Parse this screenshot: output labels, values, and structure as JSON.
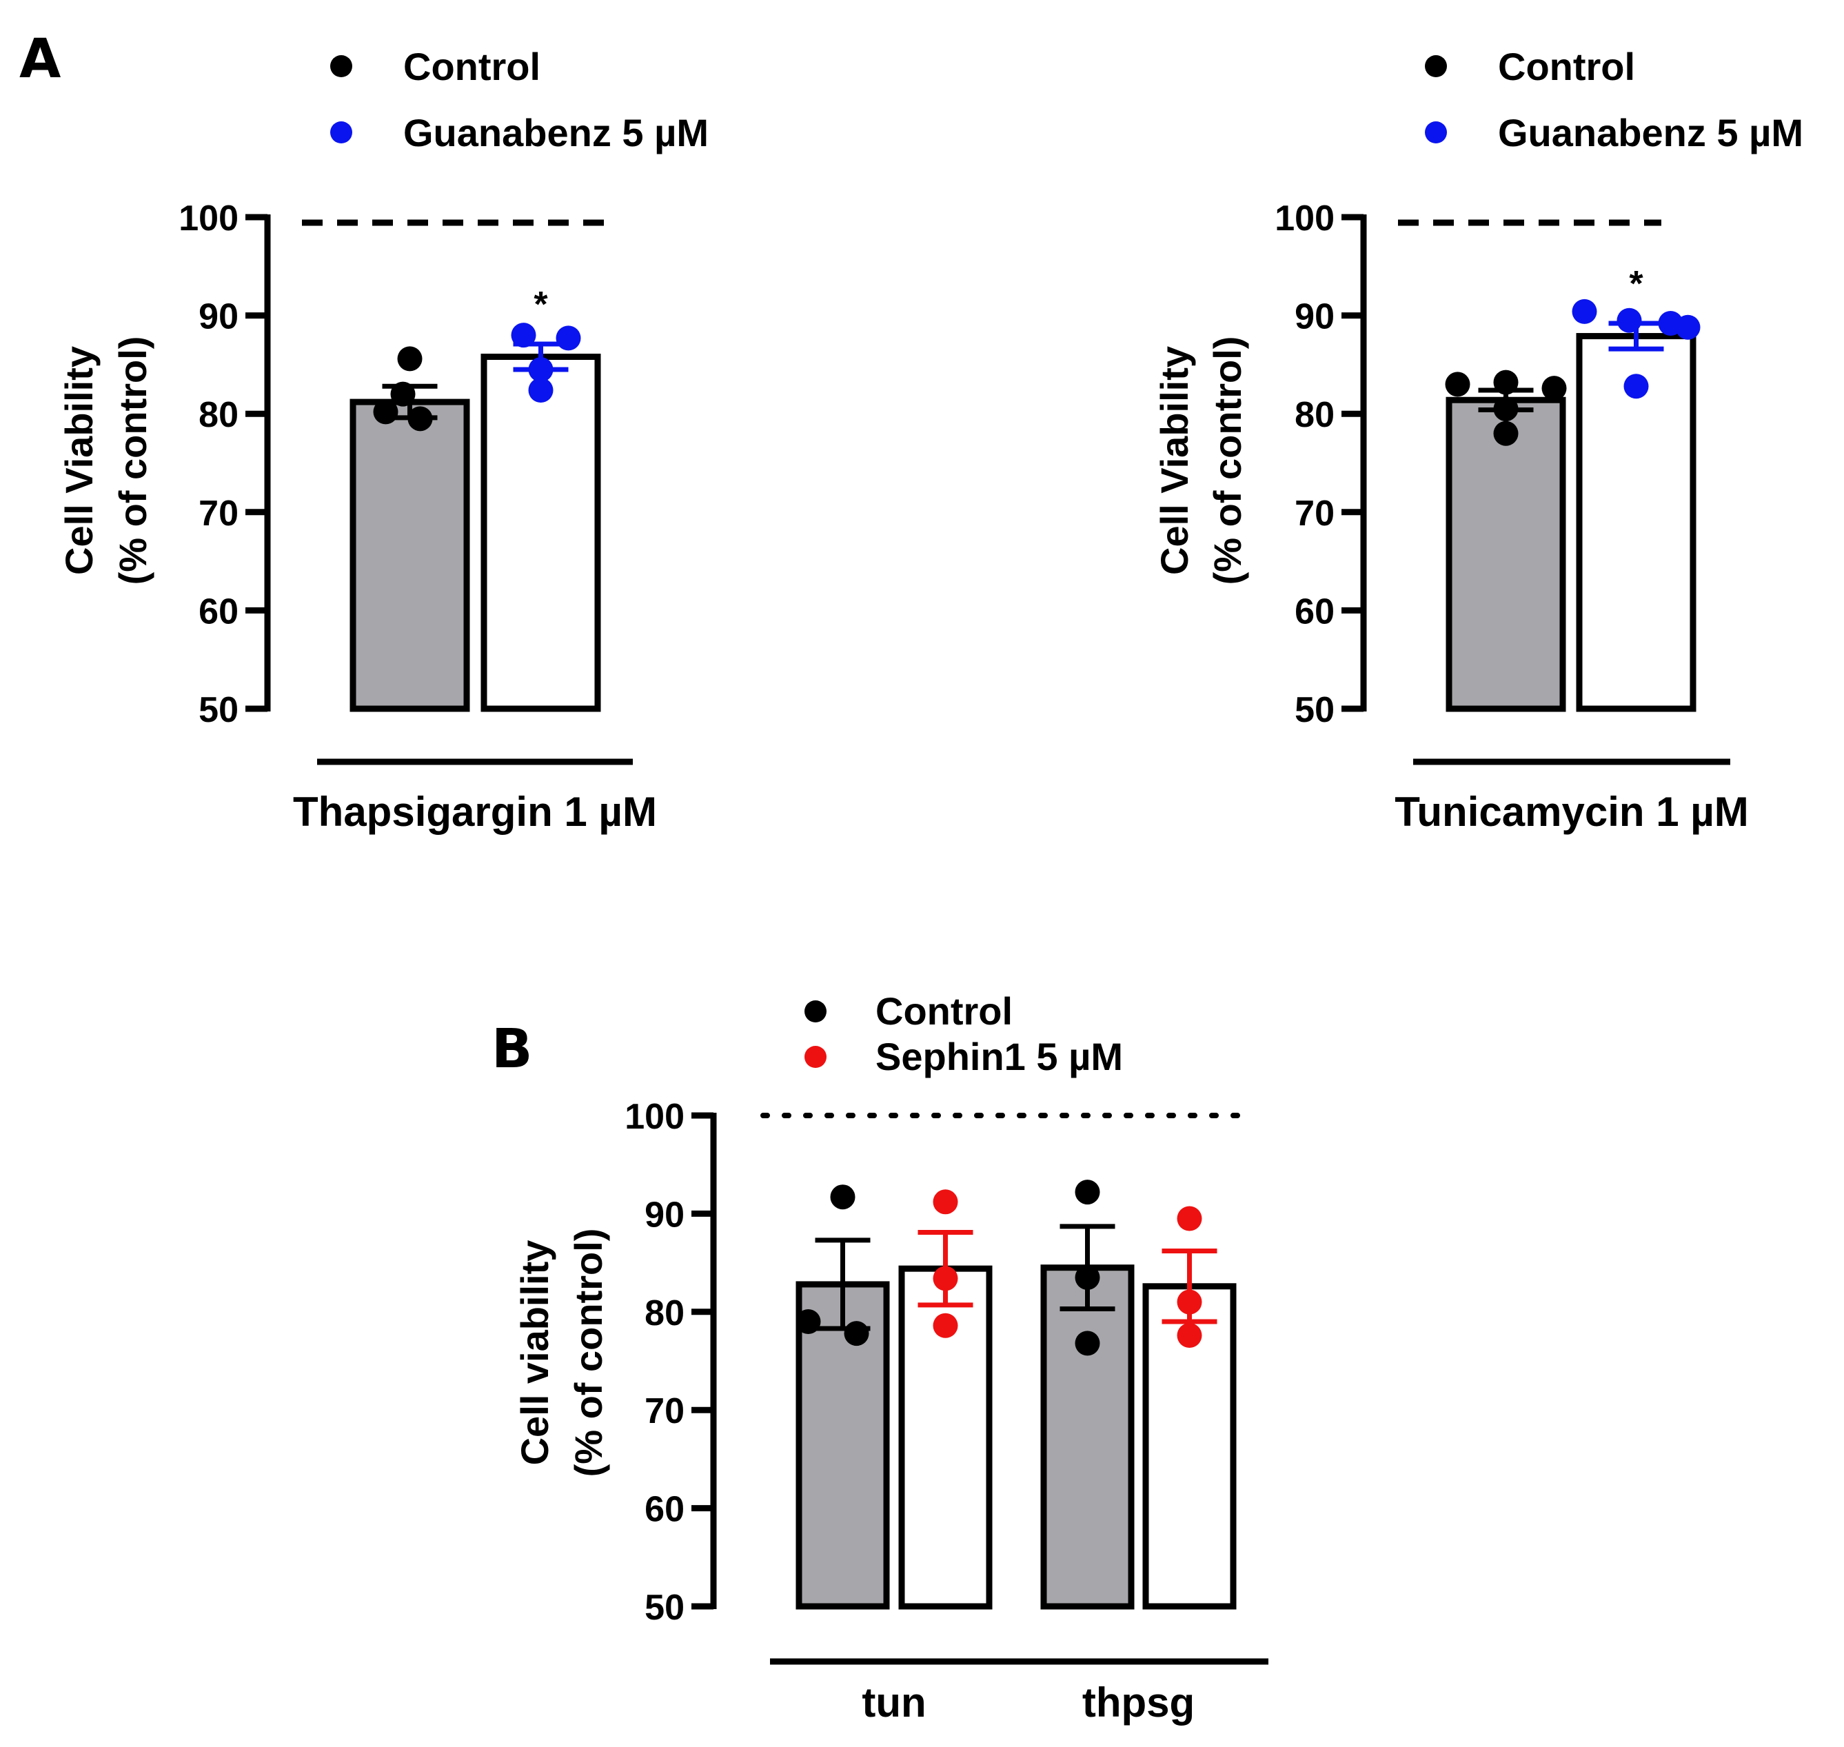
{
  "figure": {
    "panel_labels": [
      "A",
      "B"
    ]
  },
  "colors": {
    "control": "#000000",
    "guanabenz": "#0a14ee",
    "sephin1": "#ee1111",
    "control_bar_fill": "#a7a6aa",
    "treatment_bar_fill": "#ffffff"
  },
  "chart_data": [
    {
      "id": "A-left",
      "type": "bar",
      "panel": "A",
      "categories": [
        "Control",
        "Guanabenz 5 µM"
      ],
      "legend": [
        "Control",
        "Guanabenz 5 µM"
      ],
      "legend_placement": "top",
      "group_label": "Thapsigargin 1 µM",
      "ylabel_lines": [
        "Cell Viability",
        "(% of control)"
      ],
      "ylim": [
        50,
        100
      ],
      "yticks": [
        "50",
        "60",
        "70",
        "80",
        "90",
        "100"
      ],
      "reference_line": {
        "value": 100,
        "style": "dashed"
      },
      "grid": false,
      "values": [
        81.2,
        85.8
      ],
      "errors": [
        1.6,
        1.3
      ],
      "points": [
        [
          85.6,
          82.0,
          80.2,
          79.5
        ],
        [
          88.0,
          87.7,
          84.5,
          82.4
        ]
      ],
      "significance": [
        "",
        "*"
      ]
    },
    {
      "id": "A-right",
      "type": "bar",
      "panel": "A",
      "categories": [
        "Control",
        "Guanabenz 5 µM"
      ],
      "legend": [
        "Control",
        "Guanabenz 5 µM"
      ],
      "legend_placement": "top",
      "group_label": "Tunicamycin 1 µM",
      "ylabel_lines": [
        "Cell Viability",
        "(% of control)"
      ],
      "ylim": [
        50,
        100
      ],
      "yticks": [
        "50",
        "60",
        "70",
        "80",
        "90",
        "100"
      ],
      "reference_line": {
        "value": 100,
        "style": "dashed"
      },
      "grid": false,
      "values": [
        81.4,
        87.9
      ],
      "errors": [
        1.0,
        1.3
      ],
      "points": [
        [
          83.0,
          83.2,
          82.6,
          80.5,
          78.0
        ],
        [
          90.4,
          89.2,
          89.5,
          88.8,
          82.8
        ]
      ],
      "significance": [
        "",
        "*"
      ]
    },
    {
      "id": "B",
      "type": "bar",
      "panel": "B",
      "categories": [
        "tun",
        "thpsg"
      ],
      "legend": [
        "Control",
        "Sephin1 5 µM"
      ],
      "legend_placement": "top",
      "ylabel_lines": [
        "Cell viability",
        "(% of control)"
      ],
      "ylim": [
        50,
        100
      ],
      "yticks": [
        "50",
        "60",
        "70",
        "80",
        "90",
        "100"
      ],
      "reference_line": {
        "value": 100,
        "style": "dotted"
      },
      "grid": false,
      "series": [
        {
          "name": "Control",
          "values": [
            82.8,
            84.5
          ],
          "errors": [
            4.5,
            4.2
          ],
          "points": [
            [
              91.7,
              79.0,
              77.8
            ],
            [
              92.2,
              83.5,
              76.8
            ]
          ]
        },
        {
          "name": "Sephin1 5 µM",
          "values": [
            84.4,
            82.6
          ],
          "errors": [
            3.7,
            3.6
          ],
          "points": [
            [
              91.2,
              83.4,
              78.6
            ],
            [
              89.5,
              81.0,
              77.6
            ]
          ]
        }
      ]
    }
  ]
}
